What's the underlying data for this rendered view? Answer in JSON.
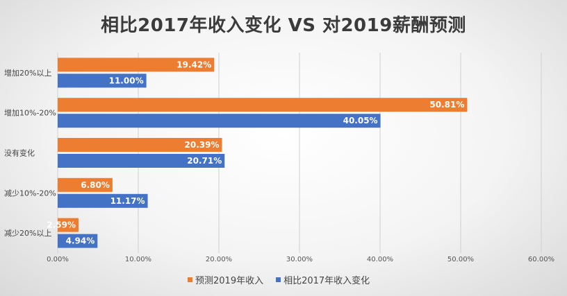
{
  "chart_data": {
    "type": "bar",
    "orientation": "horizontal",
    "title": "相比2017年收入变化 VS 对2019薪酬预测",
    "categories": [
      "增加20%以上",
      "增加10%-20%",
      "没有变化",
      "减少10%-20%",
      "减少20%以上"
    ],
    "series": [
      {
        "name": "预测2019年收入",
        "color": "#ED7D31",
        "values": [
          19.42,
          50.81,
          20.39,
          6.8,
          2.59
        ],
        "labels": [
          "19.42%",
          "50.81%",
          "20.39%",
          "6.80%",
          "2.59%"
        ]
      },
      {
        "name": "相比2017年收入变化",
        "color": "#4472C4",
        "values": [
          11.0,
          40.05,
          20.71,
          11.17,
          4.94
        ],
        "labels": [
          "11.00%",
          "40.05%",
          "20.71%",
          "11.17%",
          "4.94%"
        ]
      }
    ],
    "xlim": [
      0,
      60
    ],
    "xticks": [
      "0.00%",
      "10.00%",
      "20.00%",
      "30.00%",
      "40.00%",
      "50.00%",
      "60.00%"
    ],
    "grid": "vertical",
    "legend_position": "bottom"
  }
}
